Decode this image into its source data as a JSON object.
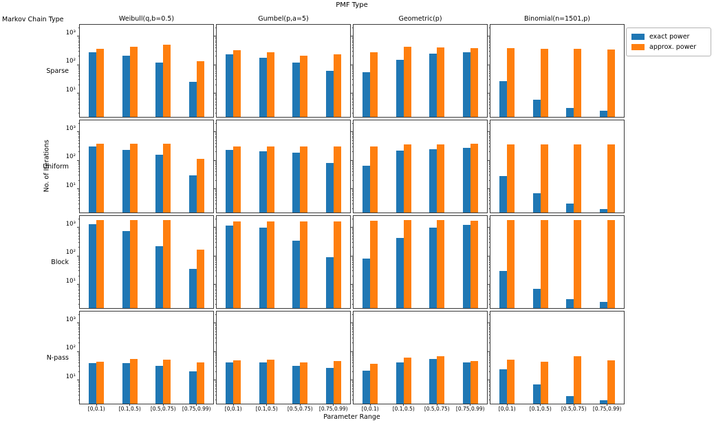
{
  "title": "PMF Type",
  "row_axis_title": "Markov Chain Type",
  "xlabel": "Parameter Range",
  "ylabel": "No. of Iterations",
  "legend": {
    "items": [
      {
        "label": "exact power",
        "color": "#1f77b4"
      },
      {
        "label": "approx. power",
        "color": "#ff7f0e"
      }
    ]
  },
  "chart_data": {
    "type": "bar",
    "layout": "4x4 grid of grouped-bar subplots, shared log y-axis",
    "title": "PMF Type",
    "xlabel": "Parameter Range",
    "ylabel": "No. of Iterations",
    "yscale": "log",
    "ylim": [
      1.5,
      2500
    ],
    "yticks": [
      {
        "value": 10,
        "label": "10¹"
      },
      {
        "value": 100,
        "label": "10²"
      },
      {
        "value": 1000,
        "label": "10³"
      }
    ],
    "columns": [
      "Weibull(q,b=0.5)",
      "Gumbel(p,a=5)",
      "Geometric(p)",
      "Binomial(n=1501,p)"
    ],
    "rows": [
      "Sparse",
      "Uniform",
      "Block",
      "N-pass"
    ],
    "categories": [
      "[0,0.1)",
      "[0.1,0.5)",
      "[0.5,0.75)",
      "[0.75,0.99)"
    ],
    "series_names": [
      "exact power",
      "approx. power"
    ],
    "series_colors": [
      "#1f77b4",
      "#ff7f0e"
    ],
    "subplots": [
      {
        "row": "Sparse",
        "col": "Weibull(q,b=0.5)",
        "exact": [
          270,
          210,
          120,
          25
        ],
        "approx": [
          370,
          430,
          500,
          130
        ]
      },
      {
        "row": "Sparse",
        "col": "Gumbel(p,a=5)",
        "exact": [
          230,
          180,
          120,
          60
        ],
        "approx": [
          330,
          270,
          210,
          230
        ]
      },
      {
        "row": "Sparse",
        "col": "Geometric(p)",
        "exact": [
          55,
          150,
          250,
          270
        ],
        "approx": [
          280,
          430,
          410,
          390
        ]
      },
      {
        "row": "Sparse",
        "col": "Binomial(n=1501,p)",
        "exact": [
          27,
          6,
          3,
          2.5
        ],
        "approx": [
          380,
          360,
          370,
          350
        ]
      },
      {
        "row": "Uniform",
        "col": "Weibull(q,b=0.5)",
        "exact": [
          300,
          230,
          160,
          30
        ],
        "approx": [
          380,
          380,
          380,
          115
        ]
      },
      {
        "row": "Uniform",
        "col": "Gumbel(p,a=5)",
        "exact": [
          230,
          210,
          185,
          80
        ],
        "approx": [
          300,
          310,
          310,
          310
        ]
      },
      {
        "row": "Uniform",
        "col": "Geometric(p)",
        "exact": [
          65,
          215,
          245,
          275
        ],
        "approx": [
          300,
          365,
          365,
          375
        ]
      },
      {
        "row": "Uniform",
        "col": "Binomial(n=1501,p)",
        "exact": [
          28,
          7,
          3,
          2
        ],
        "approx": [
          370,
          370,
          360,
          360
        ]
      },
      {
        "row": "Block",
        "col": "Weibull(q,b=0.5)",
        "exact": [
          1300,
          750,
          220,
          35
        ],
        "approx": [
          1800,
          1800,
          1750,
          170
        ]
      },
      {
        "row": "Block",
        "col": "Gumbel(p,a=5)",
        "exact": [
          1150,
          1000,
          350,
          90
        ],
        "approx": [
          1650,
          1650,
          1650,
          1650
        ]
      },
      {
        "row": "Block",
        "col": "Geometric(p)",
        "exact": [
          80,
          430,
          950,
          1200
        ],
        "approx": [
          1700,
          1750,
          1750,
          1700
        ]
      },
      {
        "row": "Block",
        "col": "Binomial(n=1501,p)",
        "exact": [
          30,
          7,
          3,
          2.5
        ],
        "approx": [
          1750,
          1750,
          1750,
          1750
        ]
      },
      {
        "row": "N-pass",
        "col": "Weibull(q,b=0.5)",
        "exact": [
          40,
          40,
          32,
          20
        ],
        "approx": [
          44,
          55,
          52,
          42
        ]
      },
      {
        "row": "N-pass",
        "col": "Gumbel(p,a=5)",
        "exact": [
          42,
          42,
          31,
          26
        ],
        "approx": [
          50,
          52,
          41,
          46
        ]
      },
      {
        "row": "N-pass",
        "col": "Geometric(p)",
        "exact": [
          22,
          42,
          55,
          42
        ],
        "approx": [
          38,
          60,
          70,
          47
        ]
      },
      {
        "row": "N-pass",
        "col": "Binomial(n=1501,p)",
        "exact": [
          24,
          7,
          2.8,
          2
        ],
        "approx": [
          52,
          44,
          68,
          48
        ]
      }
    ]
  }
}
